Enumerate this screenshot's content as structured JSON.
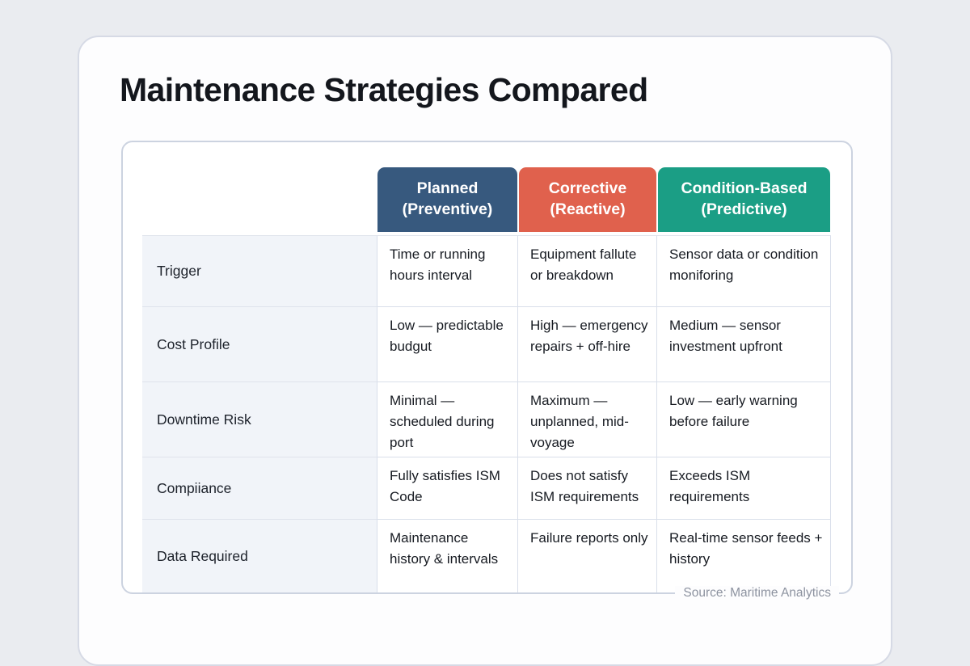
{
  "page": {
    "title": "Maintenance Strategies Compared",
    "source_note": "Source: Maritime Analytics"
  },
  "chart_data": {
    "type": "table",
    "title": "Maintenance Strategies Compared",
    "column_headers": [
      {
        "line1": "Planned",
        "line2": "(Preventive)",
        "color": "#37597e"
      },
      {
        "line1": "Corrective",
        "line2": "(Reactive)",
        "color": "#e0614d"
      },
      {
        "line1": "Condition-Based",
        "line2": "(Predictive)",
        "color": "#1b9e85"
      }
    ],
    "rows": [
      {
        "label": "Trigger",
        "cells": [
          "Time or running hours interval",
          "Equipment fallute or breakdown",
          "Sensor data or condition moniforing"
        ]
      },
      {
        "label": "Cost Profile",
        "cells": [
          "Low — predictable budgut",
          "High — emergency repairs + off-hire",
          "Medium — sensor investment upfront"
        ]
      },
      {
        "label": "Downtime Risk",
        "cells": [
          "Minimal — scheduled during port",
          "Maximum — unplanned, mid-voyage",
          "Low — early warning before failure"
        ]
      },
      {
        "label": "Compiiance",
        "cells": [
          "Fully satisfies ISM Code",
          "Does not satisfy ISM requirements",
          "Exceeds ISM requirements"
        ]
      },
      {
        "label": "Data Required",
        "cells": [
          "Maintenance history & intervals",
          "Failure reports only",
          "Real-time sensor feeds + history"
        ]
      }
    ],
    "source": "Source: Maritime Analytics"
  },
  "colors": {
    "page_background": "#eaecf0",
    "card_background": "#fdfdfe",
    "header_planned": "#37597e",
    "header_corrective": "#e0614d",
    "header_condition_based": "#1b9e85",
    "row_label_background": "#f1f4f9",
    "table_border": "#d9dfea",
    "title_text": "#14171d",
    "cell_text": "#171b22",
    "source_text": "#8d93a0"
  }
}
